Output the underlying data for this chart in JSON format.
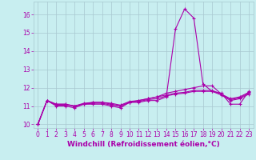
{
  "x": [
    0,
    1,
    2,
    3,
    4,
    5,
    6,
    7,
    8,
    9,
    10,
    11,
    12,
    13,
    14,
    15,
    16,
    17,
    18,
    19,
    20,
    21,
    22,
    23
  ],
  "line1": [
    10.0,
    11.3,
    11.0,
    11.0,
    10.9,
    11.1,
    11.1,
    11.1,
    11.0,
    10.9,
    11.2,
    11.2,
    11.3,
    11.3,
    11.5,
    15.2,
    16.3,
    15.8,
    12.2,
    11.8,
    11.7,
    11.1,
    11.1,
    11.8
  ],
  "line2": [
    10.0,
    11.3,
    11.1,
    11.1,
    11.0,
    11.1,
    11.2,
    11.2,
    11.1,
    11.0,
    11.2,
    11.3,
    11.4,
    11.5,
    11.7,
    11.8,
    11.9,
    12.0,
    12.1,
    12.1,
    11.65,
    11.4,
    11.5,
    11.75
  ],
  "line3": [
    10.0,
    11.3,
    11.1,
    11.1,
    11.0,
    11.15,
    11.2,
    11.2,
    11.15,
    11.05,
    11.25,
    11.3,
    11.4,
    11.5,
    11.6,
    11.7,
    11.75,
    11.85,
    11.85,
    11.85,
    11.65,
    11.35,
    11.45,
    11.7
  ],
  "line4": [
    10.0,
    11.3,
    11.05,
    11.05,
    11.0,
    11.1,
    11.15,
    11.15,
    11.05,
    11.0,
    11.2,
    11.25,
    11.35,
    11.4,
    11.55,
    11.65,
    11.7,
    11.8,
    11.8,
    11.8,
    11.6,
    11.3,
    11.4,
    11.65
  ],
  "ylim": [
    9.8,
    16.7
  ],
  "yticks": [
    10,
    11,
    12,
    13,
    14,
    15,
    16
  ],
  "xticks": [
    0,
    1,
    2,
    3,
    4,
    5,
    6,
    7,
    8,
    9,
    10,
    11,
    12,
    13,
    14,
    15,
    16,
    17,
    18,
    19,
    20,
    21,
    22,
    23
  ],
  "line_color": "#aa00aa",
  "bg_color": "#c8eef0",
  "grid_color": "#a8c8d0",
  "xlabel": "Windchill (Refroidissement éolien,°C)",
  "marker": "+",
  "fontsize_ticks": 5.5,
  "fontsize_xlabel": 6.5
}
